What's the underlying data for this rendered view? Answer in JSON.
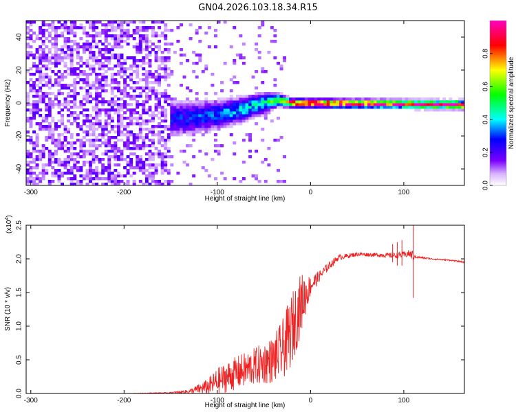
{
  "title": "GN04.2026.103.18.34.R15",
  "chart_data": [
    {
      "type": "heatmap",
      "name": "spectrogram",
      "xlabel": "Height of straight line (km)",
      "ylabel": "Frequency (Hz)",
      "xlim": [
        -305,
        165
      ],
      "ylim": [
        -50,
        50
      ],
      "xticks": [
        -300,
        -200,
        -100,
        0,
        100
      ],
      "yticks": [
        40,
        20,
        0,
        -20,
        -40
      ],
      "x_tick_labels": [
        "-300",
        "-200",
        "-100",
        "0",
        "100"
      ],
      "y_tick_labels": [
        "40",
        "20",
        "0",
        "-20",
        "-40"
      ],
      "noise_region_x": [
        -305,
        -150
      ],
      "signal_line": [
        {
          "x": -160,
          "y": -10,
          "spread": 9,
          "amp": 0.25
        },
        {
          "x": -130,
          "y": -9,
          "spread": 8,
          "amp": 0.28
        },
        {
          "x": -100,
          "y": -7,
          "spread": 7,
          "amp": 0.32
        },
        {
          "x": -75,
          "y": -4,
          "spread": 6,
          "amp": 0.38
        },
        {
          "x": -50,
          "y": 0,
          "spread": 5,
          "amp": 0.42
        },
        {
          "x": -35,
          "y": 2,
          "spread": 3,
          "amp": 0.6
        },
        {
          "x": -20,
          "y": 0,
          "spread": 2,
          "amp": 0.9
        },
        {
          "x": 165,
          "y": -1,
          "spread": 2,
          "amp": 0.95
        }
      ]
    },
    {
      "type": "colorbar",
      "name": "colorbar",
      "label": "Normalized spectral amplitude",
      "range": [
        0,
        1
      ],
      "ticks": [
        0.0,
        0.2,
        0.4,
        0.6,
        0.8
      ],
      "tick_labels": [
        "0.0",
        "0.2",
        "0.4",
        "0.6",
        "0.8"
      ],
      "colors": [
        "#ffffff",
        "#7a00ff",
        "#0000ff",
        "#00ffff",
        "#00ff00",
        "#ffff00",
        "#ff0000",
        "#ff00c0"
      ]
    },
    {
      "type": "line",
      "name": "snr",
      "xlabel": "Height of straight line (km)",
      "ylabel": "SNR (10 * v/v)",
      "scale_label": "(x10",
      "scale_exponent": "4",
      "scale_close": ")",
      "xlim": [
        -305,
        165
      ],
      "ylim": [
        0,
        2.5
      ],
      "xticks": [
        -300,
        -200,
        -100,
        0,
        100
      ],
      "yticks": [
        0.0,
        0.5,
        1.0,
        1.5,
        2.0,
        2.5
      ],
      "x_tick_labels": [
        "-300",
        "-200",
        "-100",
        "0",
        "100"
      ],
      "y_tick_labels": [
        "0.0",
        "0.5",
        "1.0",
        "1.5",
        "2.0",
        "2.5"
      ],
      "color": "#ee2222",
      "x": [
        -305,
        -200,
        -150,
        -130,
        -110,
        -100,
        -80,
        -60,
        -40,
        -30,
        -20,
        -10,
        0,
        10,
        20,
        30,
        50,
        70,
        90,
        100,
        105,
        110,
        112,
        130,
        150,
        165
      ],
      "y": [
        0.0,
        0.0,
        0.01,
        0.03,
        0.1,
        0.18,
        0.3,
        0.4,
        0.5,
        0.65,
        0.95,
        1.35,
        1.6,
        1.75,
        1.9,
        2.02,
        2.07,
        2.06,
        2.05,
        2.06,
        2.08,
        2.05,
        2.03,
        2.0,
        1.98,
        1.95
      ],
      "noise": [
        0.0,
        0.0,
        0.01,
        0.03,
        0.12,
        0.2,
        0.25,
        0.28,
        0.35,
        0.45,
        0.55,
        0.45,
        0.15,
        0.08,
        0.06,
        0.04,
        0.03,
        0.03,
        0.04,
        0.05,
        0.05,
        0.08,
        0.02,
        0.01,
        0.01,
        0.01
      ],
      "spikes": [
        {
          "x": 110,
          "lo": 1.42,
          "hi": 2.52
        },
        {
          "x": 88,
          "lo": 1.95,
          "hi": 2.22
        },
        {
          "x": 93,
          "lo": 1.9,
          "hi": 2.25
        },
        {
          "x": 98,
          "lo": 1.9,
          "hi": 2.28
        }
      ]
    }
  ]
}
